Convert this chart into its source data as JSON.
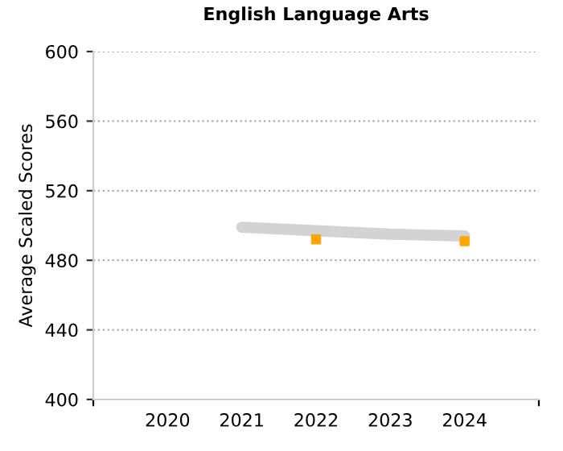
{
  "chart_data": {
    "type": "line",
    "title": "English Language Arts",
    "ylabel": "Average Scaled Scores",
    "xlim": [
      2019,
      2025
    ],
    "xticks": [
      {
        "value": 2019,
        "label": null
      },
      2020,
      2021,
      2022,
      2023,
      2024,
      {
        "value": 2025,
        "label": null
      }
    ],
    "ylim": [
      400,
      600
    ],
    "yticks": [
      400,
      440,
      480,
      520,
      560,
      600
    ],
    "grid": "y",
    "legend": false,
    "series": [
      {
        "color": "#d3d3d3",
        "x": [
          2021,
          2022,
          2023,
          2024
        ],
        "values": [
          499,
          497,
          495,
          494
        ],
        "marker": "none",
        "line_style": "solid"
      },
      {
        "type": "scatter",
        "color": "#ffa500",
        "x": [
          2022,
          2024
        ],
        "values": [
          492,
          491
        ],
        "marker": "square"
      }
    ]
  }
}
